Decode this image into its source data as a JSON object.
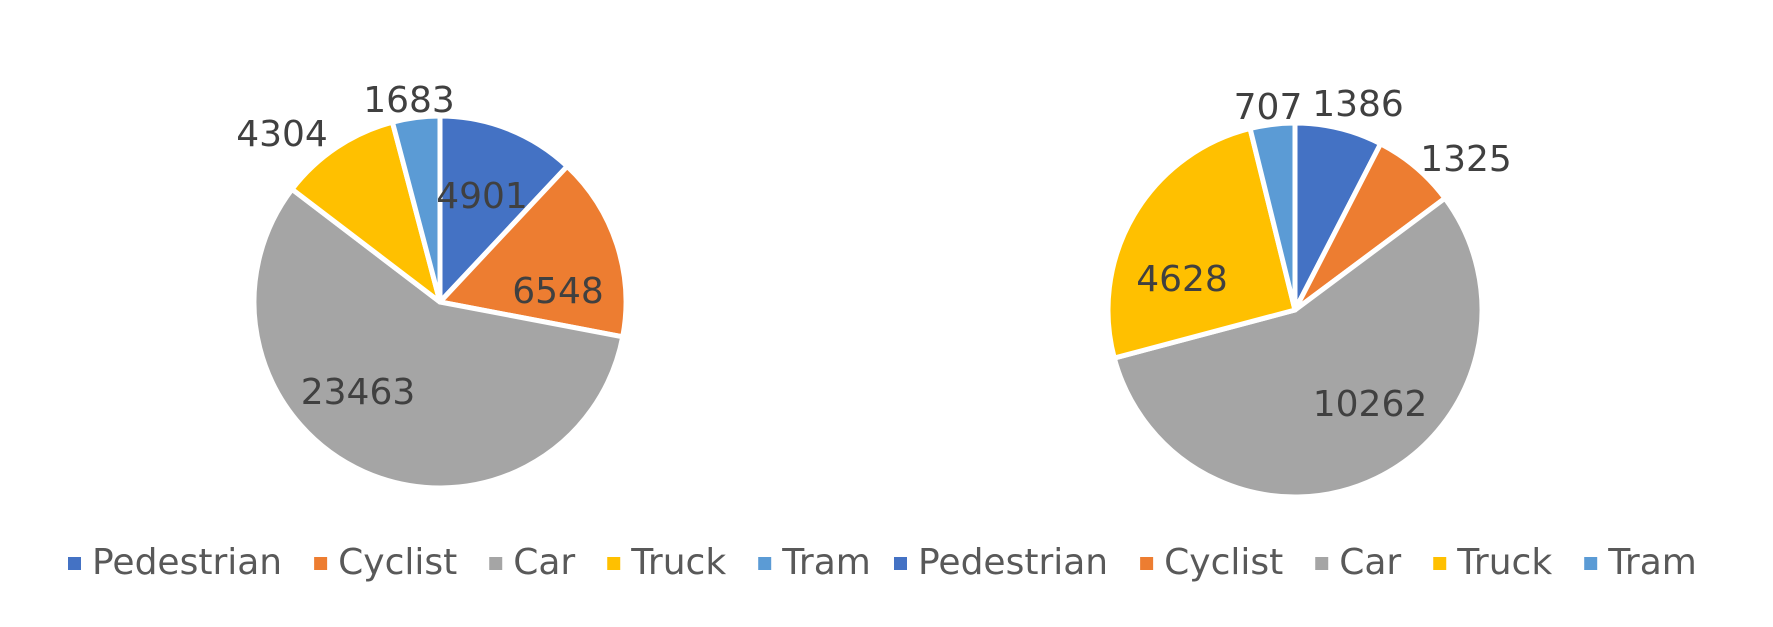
{
  "chart_data": [
    {
      "type": "pie",
      "title": "",
      "categories": [
        "Pedestrian",
        "Cyclist",
        "Car",
        "Truck",
        "Tram"
      ],
      "values": [
        4901,
        6548,
        23463,
        4304,
        1683
      ],
      "colors": [
        "#4472C4",
        "#ED7D31",
        "#A5A5A5",
        "#FFC000",
        "#5B9BD5"
      ],
      "legend": {
        "position": "bottom",
        "entries": [
          "Pedestrian",
          "Cyclist",
          "Car",
          "Truck",
          "Tram"
        ]
      },
      "data_labels": [
        "4901",
        "6548",
        "23463",
        "4304",
        "1683"
      ]
    },
    {
      "type": "pie",
      "title": "",
      "categories": [
        "Pedestrian",
        "Cyclist",
        "Car",
        "Truck",
        "Tram"
      ],
      "values": [
        1386,
        1325,
        10262,
        4628,
        707
      ],
      "colors": [
        "#4472C4",
        "#ED7D31",
        "#A5A5A5",
        "#FFC000",
        "#5B9BD5"
      ],
      "legend": {
        "position": "bottom",
        "entries": [
          "Pedestrian",
          "Cyclist",
          "Car",
          "Truck",
          "Tram"
        ]
      },
      "data_labels": [
        "1386",
        "1325",
        "10262",
        "4628",
        "707"
      ]
    }
  ]
}
